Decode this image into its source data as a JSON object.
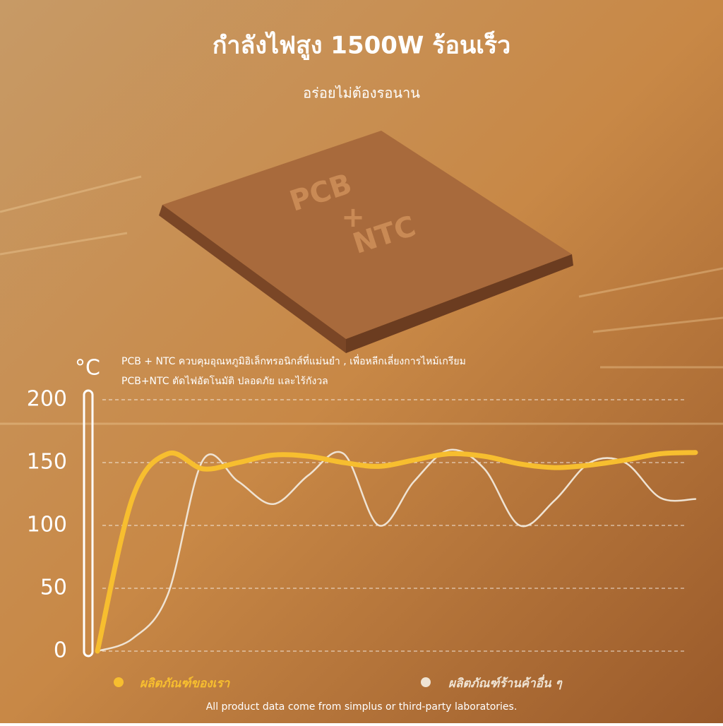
{
  "chart_data": {
    "type": "line",
    "title": "กำลังไฟสูง 1500W ร้อนเร็ว",
    "subtitle": "อร่อยไม่ต้องรอนาน",
    "chip_text": [
      "PCB",
      "+",
      "NTC"
    ],
    "y_unit": "°C",
    "annotations": [
      "PCB + NTC ควบคุมอุณหภูมิอิเล็กทรอนิกส์ที่แม่นยำ , เพื่อหลีกเลี่ยงการไหม้เกรียม",
      "PCB+NTC ตัดไฟอัตโนมัติ ปลอดภัย และไร้กังวล"
    ],
    "categories": [
      null,
      null,
      null,
      null,
      null,
      null,
      null,
      null,
      null,
      null,
      null,
      null,
      null,
      null,
      null,
      null,
      null,
      null
    ],
    "series": [
      {
        "name": "ผลิตภัณฑ์ของเรา",
        "color": "#f7be2f",
        "values": [
          0,
          122,
          157,
          145,
          150,
          156,
          155,
          150,
          147,
          152,
          157,
          155,
          149,
          146,
          148,
          152,
          157,
          158
        ]
      },
      {
        "name": "ผลิตภัณฑ์ร้านค้าอื่น ๆ",
        "color": "#efe3d3",
        "values": [
          0,
          10,
          45,
          152,
          135,
          117,
          140,
          157,
          100,
          135,
          160,
          145,
          100,
          120,
          150,
          150,
          122,
          121
        ]
      }
    ],
    "ylim": [
      0,
      200
    ],
    "yticks": [
      0,
      50,
      100,
      150,
      200
    ],
    "grid": true,
    "footnote": "All product data come from simplus or  third-party laboratories."
  }
}
